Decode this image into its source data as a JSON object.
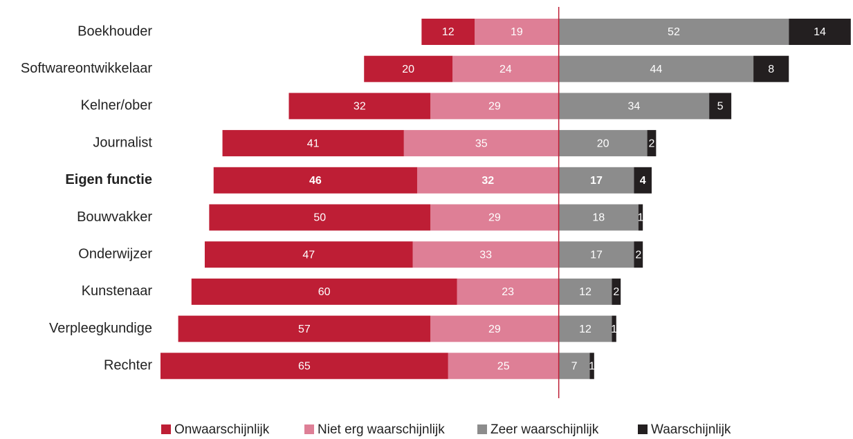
{
  "chart_data": {
    "type": "diverging_bar",
    "categories": [
      "Boekhouder",
      "Softwareontwikkelaar",
      "Kelner/ober",
      "Journalist",
      "Eigen functie",
      "Bouwvakker",
      "Onderwijzer",
      "Kunstenaar",
      "Verpleegkundige",
      "Rechter"
    ],
    "highlight": "Eigen functie",
    "series": [
      {
        "name": "Onwaarschijnlijk",
        "color": "#be1e35",
        "values": [
          12,
          20,
          32,
          41,
          46,
          50,
          47,
          60,
          57,
          65
        ]
      },
      {
        "name": "Niet erg waarschijnlijk",
        "color": "#de7f96",
        "values": [
          19,
          24,
          29,
          35,
          32,
          29,
          33,
          23,
          29,
          25
        ]
      },
      {
        "name": "Zeer waarschijnlijk",
        "color": "#8c8c8c",
        "values": [
          52,
          44,
          34,
          20,
          17,
          18,
          17,
          12,
          12,
          7
        ]
      },
      {
        "name": "Waarschijnlijk",
        "color": "#231f20",
        "values": [
          14,
          8,
          5,
          2,
          4,
          1,
          2,
          2,
          1,
          1
        ]
      }
    ],
    "xlim": [
      -90,
      66.5
    ],
    "center_line_color": "#be1e35",
    "legend": "bottom"
  }
}
